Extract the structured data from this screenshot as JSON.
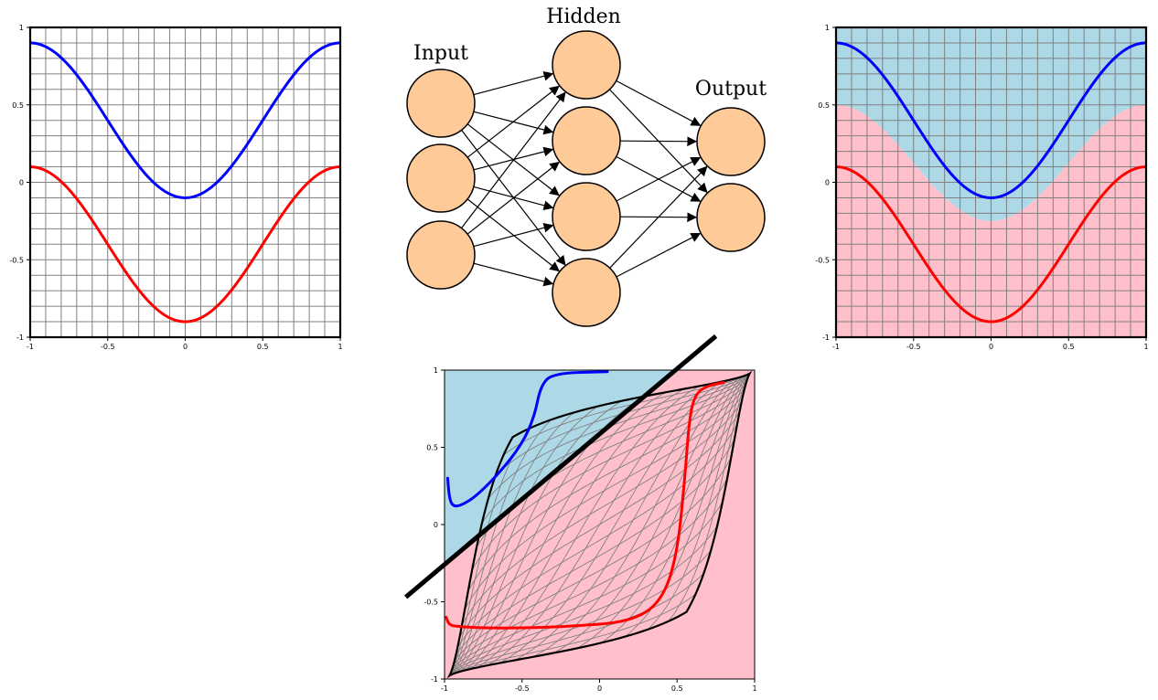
{
  "network": {
    "layers": [
      {
        "label": "Input",
        "size": 3
      },
      {
        "label": "Hidden",
        "size": 4
      },
      {
        "label": "Output",
        "size": 2
      }
    ],
    "colors": {
      "node_fill": "#FECA98",
      "node_stroke": "#000000",
      "edge": "#000000"
    }
  },
  "colors": {
    "blue_curve": "#0000FF",
    "red_curve": "#FF0000",
    "region_blue": "#ADD8E6",
    "region_pink": "#FFC0CB",
    "grid": "#808080"
  },
  "chart_data": [
    {
      "type": "line",
      "panel": "top-left",
      "xlim": [
        -1,
        1
      ],
      "ylim": [
        -1,
        1
      ],
      "x_ticks": [
        "-1",
        "-0.5",
        "0",
        "0.5",
        "1"
      ],
      "y_ticks": [
        "1",
        "0.5",
        "0",
        "-0.5",
        "-1"
      ],
      "grid": true,
      "series": [
        {
          "color": "blue",
          "x": [
            -1,
            -0.75,
            -0.5,
            -0.25,
            0,
            0.25,
            0.5,
            0.75,
            1
          ],
          "y": [
            0.9,
            0.73,
            0.4,
            0.07,
            -0.1,
            0.07,
            0.4,
            0.73,
            0.9
          ]
        },
        {
          "color": "red",
          "x": [
            -1,
            -0.75,
            -0.5,
            -0.25,
            0,
            0.25,
            0.5,
            0.75,
            1
          ],
          "y": [
            0.1,
            -0.07,
            -0.4,
            -0.73,
            -0.9,
            -0.73,
            -0.4,
            -0.07,
            0.1
          ]
        }
      ]
    },
    {
      "type": "line",
      "panel": "top-right",
      "xlim": [
        -1,
        1
      ],
      "ylim": [
        -1,
        1
      ],
      "x_ticks": [
        "-1",
        "-0.5",
        "0",
        "0.5",
        "1"
      ],
      "y_ticks": [
        "1",
        "0.5",
        "0",
        "-0.5",
        "-1"
      ],
      "grid": true,
      "regions": [
        {
          "color": "lightblue",
          "where": "above boundary"
        },
        {
          "color": "pink",
          "where": "below boundary"
        }
      ],
      "boundary": {
        "x": [
          -1,
          -0.5,
          0,
          0.5,
          1
        ],
        "y": [
          0.5,
          0.0,
          -0.25,
          0.0,
          0.5
        ]
      },
      "series": [
        {
          "color": "blue",
          "x": [
            -1,
            -0.75,
            -0.5,
            -0.25,
            0,
            0.25,
            0.5,
            0.75,
            1
          ],
          "y": [
            0.9,
            0.73,
            0.4,
            0.07,
            -0.1,
            0.07,
            0.4,
            0.73,
            0.9
          ]
        },
        {
          "color": "red",
          "x": [
            -1,
            -0.75,
            -0.5,
            -0.25,
            0,
            0.25,
            0.5,
            0.75,
            1
          ],
          "y": [
            0.1,
            -0.07,
            -0.4,
            -0.73,
            -0.9,
            -0.73,
            -0.4,
            -0.07,
            0.1
          ]
        }
      ]
    },
    {
      "type": "line",
      "panel": "bottom",
      "xlim": [
        -1,
        1
      ],
      "ylim": [
        -1,
        1
      ],
      "x_ticks": [
        "-1",
        "-0.5",
        "0",
        "0.5",
        "1"
      ],
      "y_ticks": [
        "1",
        "0.5",
        "0",
        "-0.5",
        "-1"
      ],
      "grid": "warped",
      "separator": {
        "x": [
          -1.25,
          0.75
        ],
        "y": [
          -0.47,
          1.22
        ]
      },
      "series": [
        {
          "color": "blue",
          "x": [
            -0.98,
            -0.97,
            -0.95,
            -0.9,
            -0.8,
            -0.65,
            -0.5,
            -0.42,
            -0.38,
            -0.3,
            0.05
          ],
          "y": [
            0.3,
            0.18,
            0.12,
            0.12,
            0.18,
            0.33,
            0.52,
            0.7,
            0.9,
            0.98,
            0.99
          ]
        },
        {
          "color": "red",
          "x": [
            -0.99,
            -0.97,
            -0.92,
            -0.75,
            -0.5,
            -0.2,
            0.2,
            0.4,
            0.5,
            0.55,
            0.58,
            0.62,
            0.7,
            0.8
          ],
          "y": [
            -0.6,
            -0.65,
            -0.66,
            -0.67,
            -0.67,
            -0.66,
            -0.63,
            -0.5,
            -0.2,
            0.3,
            0.7,
            0.85,
            0.9,
            0.92
          ]
        }
      ],
      "warped_square_outline": true
    }
  ]
}
